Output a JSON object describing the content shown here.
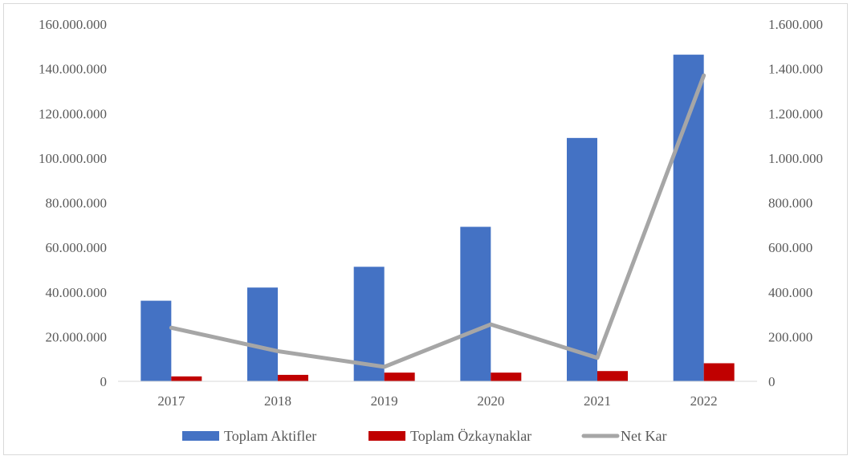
{
  "chart_data": {
    "type": "bar",
    "categories": [
      "2017",
      "2018",
      "2019",
      "2020",
      "2021",
      "2022"
    ],
    "series": [
      {
        "name": "Toplam Aktifler",
        "type": "bar",
        "axis": "left",
        "color": "#4472C4",
        "values": [
          36100000,
          42000000,
          51300000,
          69200000,
          109000000,
          146300000
        ]
      },
      {
        "name": "Toplam Özkaynaklar",
        "type": "bar",
        "axis": "left",
        "color": "#C00000",
        "values": [
          2200000,
          2900000,
          3900000,
          3900000,
          4600000,
          8100000
        ]
      },
      {
        "name": "Net Kar",
        "type": "line",
        "axis": "right",
        "color": "#A6A6A6",
        "values": [
          240000,
          135000,
          65000,
          255000,
          105000,
          1370000
        ]
      }
    ],
    "y_left": {
      "range": [
        0,
        160000000
      ],
      "ticks": [
        0,
        20000000,
        40000000,
        60000000,
        80000000,
        100000000,
        120000000,
        140000000,
        160000000
      ],
      "tick_labels": [
        "0",
        "20.000.000",
        "40.000.000",
        "60.000.000",
        "80.000.000",
        "100.000.000",
        "120.000.000",
        "140.000.000",
        "160.000.000"
      ]
    },
    "y_right": {
      "range": [
        0,
        1600000
      ],
      "ticks": [
        0,
        200000,
        400000,
        600000,
        800000,
        1000000,
        1200000,
        1400000,
        1600000
      ],
      "tick_labels": [
        "0",
        "200.000",
        "400.000",
        "600.000",
        "800.000",
        "1.000.000",
        "1.200.000",
        "1.400.000",
        "1.600.000"
      ]
    },
    "grid": false,
    "legend_position": "bottom"
  }
}
